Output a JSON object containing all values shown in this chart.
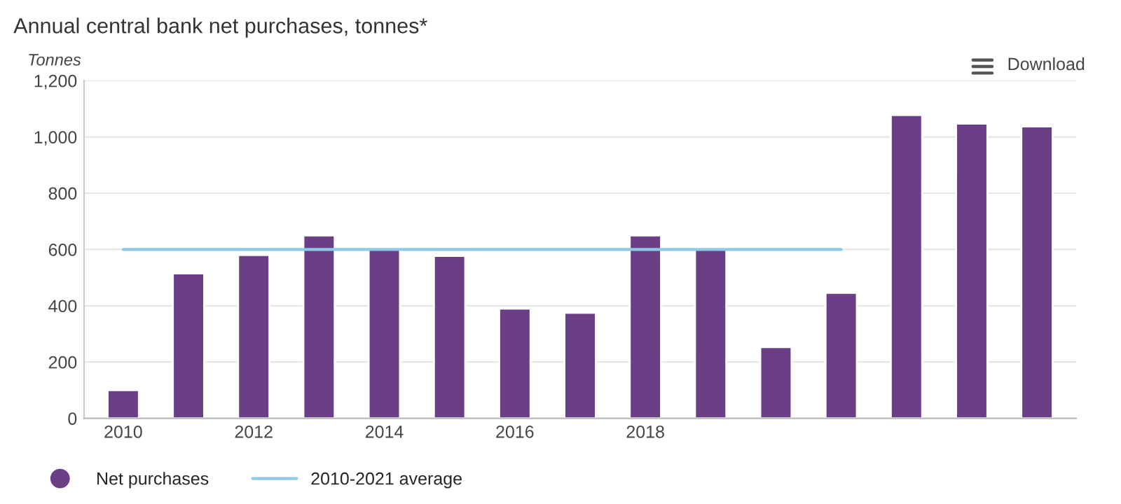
{
  "chart_data": {
    "type": "bar",
    "title": "Annual central bank net purchases, tonnes*",
    "ylabel": "Tonnes",
    "categories": [
      "2010",
      null,
      "2012",
      null,
      "2014",
      null,
      "2016",
      null,
      "2018",
      null,
      null,
      null,
      null,
      null,
      null
    ],
    "series": [
      {
        "name": "Net purchases",
        "color": "#6b3f86",
        "values": [
          100,
          515,
          580,
          650,
          600,
          577,
          390,
          375,
          650,
          600,
          253,
          446,
          1078,
          1047,
          1037
        ]
      },
      {
        "name": "2010-2021 average",
        "type": "line",
        "color": "#8ecae6",
        "values": [
          600,
          600,
          600,
          600,
          600,
          600,
          600,
          600,
          600,
          600,
          600,
          600,
          null,
          null,
          null
        ]
      }
    ],
    "ylim": [
      0,
      1200
    ],
    "yticks": [
      0,
      {
        "value": 200,
        "label": "200"
      },
      {
        "value": 400,
        "label": "400"
      },
      {
        "value": 600,
        "label": "600"
      },
      {
        "value": 800,
        "label": "800"
      },
      {
        "value": 1000,
        "label": "1,000"
      },
      {
        "value": 1200,
        "label": "1,200"
      }
    ],
    "grid": "y",
    "legend": "bottom left",
    "marker": "none",
    "line_style": "solid",
    "annotations": [
      "Download"
    ]
  }
}
